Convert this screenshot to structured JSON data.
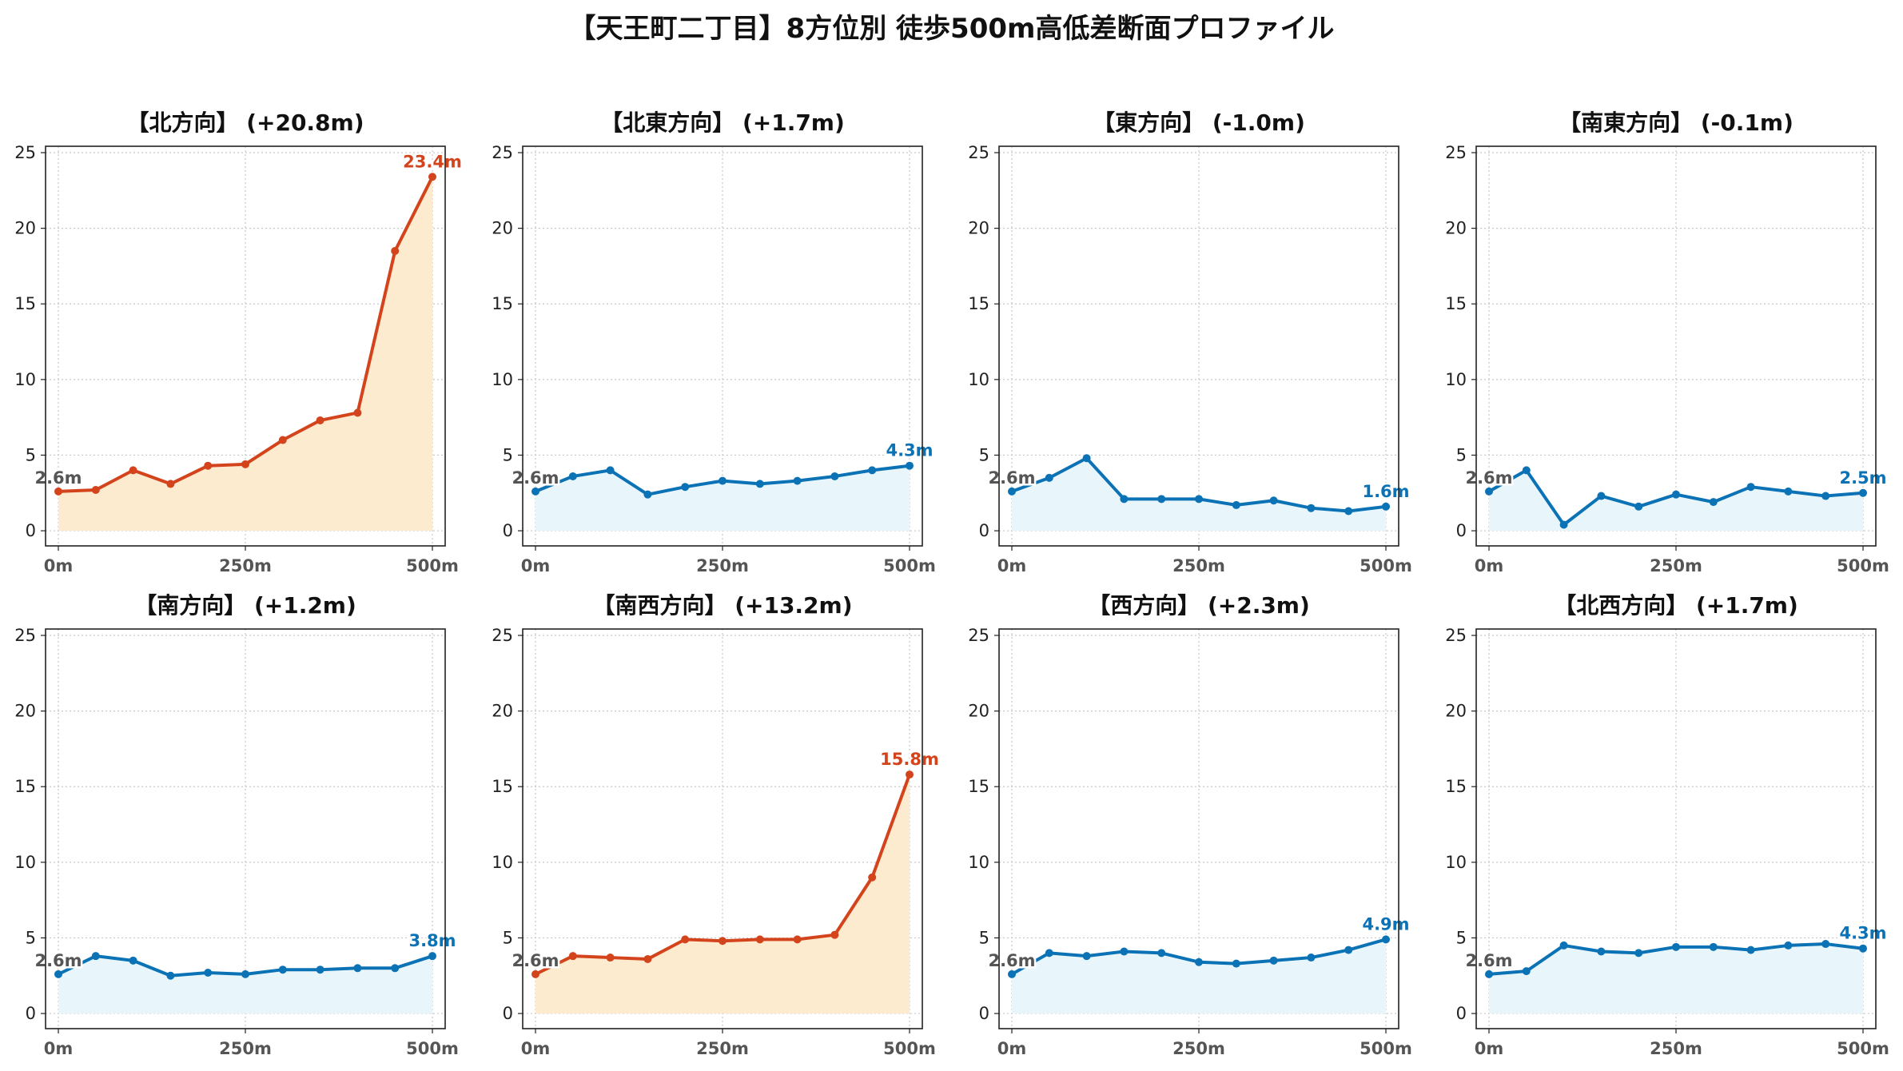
{
  "title": "【天王町二丁目】8方位別 徒歩500m高低差断面プロファイル",
  "colors": {
    "up": "#d4441c",
    "up_fill": "#fdebcf",
    "flat": "#0b72b5",
    "flat_fill": "#e8f6fc",
    "start_label": "#555555",
    "grid": "#c8c8c8"
  },
  "chart_data": [
    {
      "type": "area",
      "title": "【北方向】 (+20.8m)",
      "trend": "up",
      "x": [
        0,
        50,
        100,
        150,
        200,
        250,
        300,
        350,
        400,
        450,
        500
      ],
      "values": [
        2.6,
        2.7,
        4.0,
        3.1,
        4.3,
        4.4,
        6.0,
        7.3,
        7.8,
        18.5,
        23.4
      ],
      "start_label": "2.6m",
      "end_label": "23.4m",
      "xticks": [
        "0m",
        "250m",
        "500m"
      ],
      "yticks": [
        "0",
        "5",
        "10",
        "15",
        "20",
        "25"
      ],
      "xlim": [
        0,
        500
      ],
      "ylim": [
        -1,
        25
      ],
      "grid": true
    },
    {
      "type": "area",
      "title": "【北東方向】 (+1.7m)",
      "trend": "flat",
      "x": [
        0,
        50,
        100,
        150,
        200,
        250,
        300,
        350,
        400,
        450,
        500
      ],
      "values": [
        2.6,
        3.6,
        4.0,
        2.4,
        2.9,
        3.3,
        3.1,
        3.3,
        3.6,
        4.0,
        4.3
      ],
      "start_label": "2.6m",
      "end_label": "4.3m",
      "xticks": [
        "0m",
        "250m",
        "500m"
      ],
      "yticks": [
        "0",
        "5",
        "10",
        "15",
        "20",
        "25"
      ],
      "xlim": [
        0,
        500
      ],
      "ylim": [
        -1,
        25
      ],
      "grid": true
    },
    {
      "type": "area",
      "title": "【東方向】 (-1.0m)",
      "trend": "flat",
      "x": [
        0,
        50,
        100,
        150,
        200,
        250,
        300,
        350,
        400,
        450,
        500
      ],
      "values": [
        2.6,
        3.5,
        4.8,
        2.1,
        2.1,
        2.1,
        1.7,
        2.0,
        1.5,
        1.3,
        1.6
      ],
      "start_label": "2.6m",
      "end_label": "1.6m",
      "xticks": [
        "0m",
        "250m",
        "500m"
      ],
      "yticks": [
        "0",
        "5",
        "10",
        "15",
        "20",
        "25"
      ],
      "xlim": [
        0,
        500
      ],
      "ylim": [
        -1,
        25
      ],
      "grid": true
    },
    {
      "type": "area",
      "title": "【南東方向】 (-0.1m)",
      "trend": "flat",
      "x": [
        0,
        50,
        100,
        150,
        200,
        250,
        300,
        350,
        400,
        450,
        500
      ],
      "values": [
        2.6,
        4.0,
        0.4,
        2.3,
        1.6,
        2.4,
        1.9,
        2.9,
        2.6,
        2.3,
        2.5
      ],
      "start_label": "2.6m",
      "end_label": "2.5m",
      "xticks": [
        "0m",
        "250m",
        "500m"
      ],
      "yticks": [
        "0",
        "5",
        "10",
        "15",
        "20",
        "25"
      ],
      "xlim": [
        0,
        500
      ],
      "ylim": [
        -1,
        25
      ],
      "grid": true
    },
    {
      "type": "area",
      "title": "【南方向】 (+1.2m)",
      "trend": "flat",
      "x": [
        0,
        50,
        100,
        150,
        200,
        250,
        300,
        350,
        400,
        450,
        500
      ],
      "values": [
        2.6,
        3.8,
        3.5,
        2.5,
        2.7,
        2.6,
        2.9,
        2.9,
        3.0,
        3.0,
        3.8
      ],
      "start_label": "2.6m",
      "end_label": "3.8m",
      "xticks": [
        "0m",
        "250m",
        "500m"
      ],
      "yticks": [
        "0",
        "5",
        "10",
        "15",
        "20",
        "25"
      ],
      "xlim": [
        0,
        500
      ],
      "ylim": [
        -1,
        25
      ],
      "grid": true
    },
    {
      "type": "area",
      "title": "【南西方向】 (+13.2m)",
      "trend": "up",
      "x": [
        0,
        50,
        100,
        150,
        200,
        250,
        300,
        350,
        400,
        450,
        500
      ],
      "values": [
        2.6,
        3.8,
        3.7,
        3.6,
        4.9,
        4.8,
        4.9,
        4.9,
        5.2,
        9.0,
        15.8
      ],
      "start_label": "2.6m",
      "end_label": "15.8m",
      "xticks": [
        "0m",
        "250m",
        "500m"
      ],
      "yticks": [
        "0",
        "5",
        "10",
        "15",
        "20",
        "25"
      ],
      "xlim": [
        0,
        500
      ],
      "ylim": [
        -1,
        25
      ],
      "grid": true
    },
    {
      "type": "area",
      "title": "【西方向】 (+2.3m)",
      "trend": "flat",
      "x": [
        0,
        50,
        100,
        150,
        200,
        250,
        300,
        350,
        400,
        450,
        500
      ],
      "values": [
        2.6,
        4.0,
        3.8,
        4.1,
        4.0,
        3.4,
        3.3,
        3.5,
        3.7,
        4.2,
        4.9
      ],
      "start_label": "2.6m",
      "end_label": "4.9m",
      "xticks": [
        "0m",
        "250m",
        "500m"
      ],
      "yticks": [
        "0",
        "5",
        "10",
        "15",
        "20",
        "25"
      ],
      "xlim": [
        0,
        500
      ],
      "ylim": [
        -1,
        25
      ],
      "grid": true
    },
    {
      "type": "area",
      "title": "【北西方向】 (+1.7m)",
      "trend": "flat",
      "x": [
        0,
        50,
        100,
        150,
        200,
        250,
        300,
        350,
        400,
        450,
        500
      ],
      "values": [
        2.6,
        2.8,
        4.5,
        4.1,
        4.0,
        4.4,
        4.4,
        4.2,
        4.5,
        4.6,
        4.3
      ],
      "start_label": "2.6m",
      "end_label": "4.3m",
      "xticks": [
        "0m",
        "250m",
        "500m"
      ],
      "yticks": [
        "0",
        "5",
        "10",
        "15",
        "20",
        "25"
      ],
      "xlim": [
        0,
        500
      ],
      "ylim": [
        -1,
        25
      ],
      "grid": true
    }
  ]
}
